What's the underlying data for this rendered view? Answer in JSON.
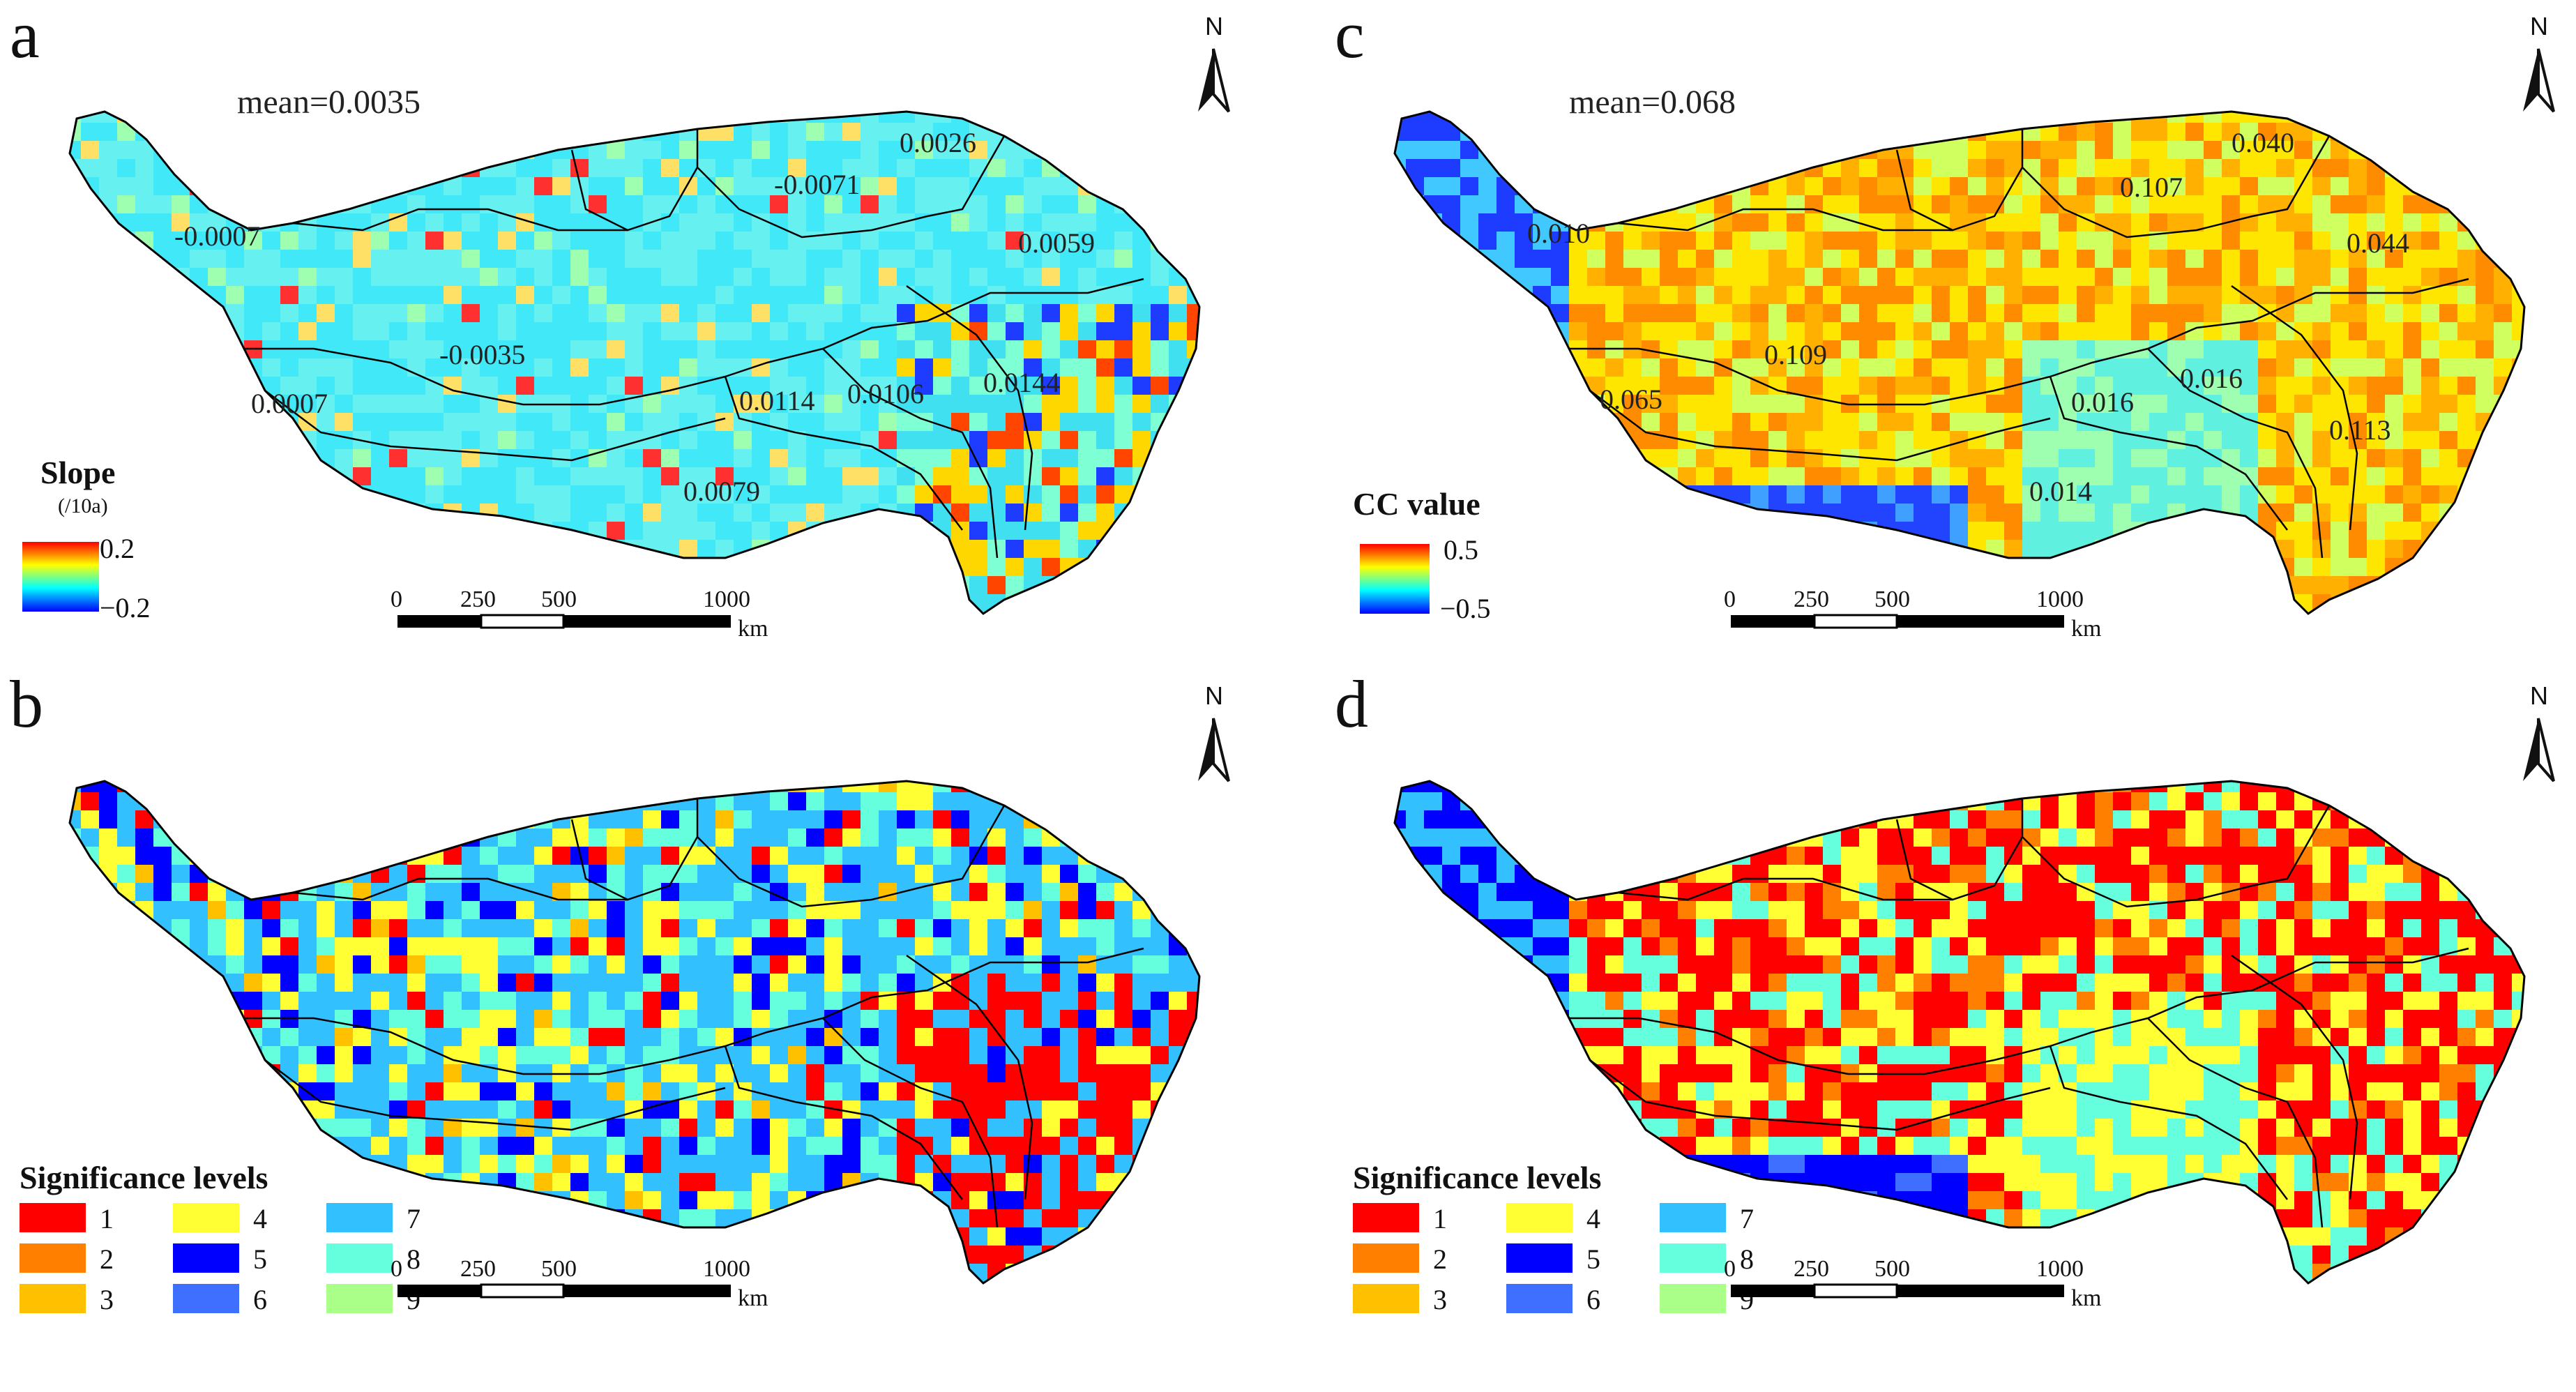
{
  "panels": [
    {
      "id": "a",
      "letter": "a",
      "mean_label": "mean=0.0035",
      "region_labels": [
        "-0.0007",
        "-0.0071",
        "0.0026",
        "0.0059",
        "-0.0035",
        "0.0007",
        "0.0114",
        "0.0106",
        "0.0144",
        "0.0079"
      ],
      "legend": {
        "type": "gradient",
        "title": "Slope",
        "unit": "(/10a)",
        "max_label": "0.2",
        "min_label": "−0.2"
      }
    },
    {
      "id": "b",
      "letter": "b",
      "legend": {
        "type": "classes",
        "title": "Significance levels"
      }
    },
    {
      "id": "c",
      "letter": "c",
      "mean_label": "mean=0.068",
      "region_labels": [
        "0.010",
        "0.107",
        "0.040",
        "0.044",
        "0.109",
        "0.065",
        "0.016",
        "0.016",
        "0.113",
        "0.014"
      ],
      "legend": {
        "type": "gradient",
        "title": "CC value",
        "max_label": "0.5",
        "min_label": "−0.5"
      }
    },
    {
      "id": "d",
      "letter": "d",
      "legend": {
        "type": "classes",
        "title": "Significance levels"
      }
    }
  ],
  "significance_classes": [
    {
      "label": "1",
      "color": "#ff0000"
    },
    {
      "label": "2",
      "color": "#ff7f00"
    },
    {
      "label": "3",
      "color": "#ffc000"
    },
    {
      "label": "4",
      "color": "#ffff33"
    },
    {
      "label": "5",
      "color": "#0000ff"
    },
    {
      "label": "6",
      "color": "#3f6fff"
    },
    {
      "label": "7",
      "color": "#33c0ff"
    },
    {
      "label": "8",
      "color": "#66ffdd"
    },
    {
      "label": "9",
      "color": "#aaff88"
    }
  ],
  "north_label": "N",
  "scale_bar": {
    "ticks": [
      "0",
      "250",
      "500",
      "1000"
    ],
    "unit": "km"
  },
  "colors": {
    "gradient_stops": [
      "#ff0000",
      "#ffff00",
      "#00ffff",
      "#0000ff"
    ],
    "boundary": "#000000"
  }
}
